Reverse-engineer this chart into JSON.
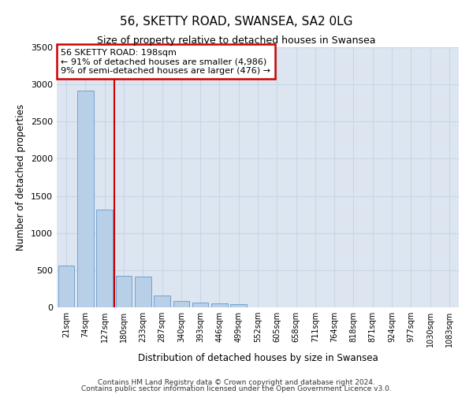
{
  "title": "56, SKETTY ROAD, SWANSEA, SA2 0LG",
  "subtitle": "Size of property relative to detached houses in Swansea",
  "xlabel": "Distribution of detached houses by size in Swansea",
  "ylabel": "Number of detached properties",
  "categories": [
    "21sqm",
    "74sqm",
    "127sqm",
    "180sqm",
    "233sqm",
    "287sqm",
    "340sqm",
    "393sqm",
    "446sqm",
    "499sqm",
    "552sqm",
    "605sqm",
    "658sqm",
    "711sqm",
    "764sqm",
    "818sqm",
    "871sqm",
    "924sqm",
    "977sqm",
    "1030sqm",
    "1083sqm"
  ],
  "values": [
    560,
    2920,
    1320,
    420,
    410,
    155,
    80,
    60,
    55,
    45,
    0,
    0,
    0,
    0,
    0,
    0,
    0,
    0,
    0,
    0,
    0
  ],
  "bar_color": "#b8cfe8",
  "bar_edge_color": "#6699cc",
  "grid_color": "#c8d4e8",
  "background_color": "#dde6f0",
  "annotation_box_color": "#cc0000",
  "property_line_color": "#cc0000",
  "annotation_title": "56 SKETTY ROAD: 198sqm",
  "annotation_line1": "← 91% of detached houses are smaller (4,986)",
  "annotation_line2": "9% of semi-detached houses are larger (476) →",
  "ylim": [
    0,
    3500
  ],
  "yticks": [
    0,
    500,
    1000,
    1500,
    2000,
    2500,
    3000,
    3500
  ],
  "property_line_x": 2.5,
  "footnote1": "Contains HM Land Registry data © Crown copyright and database right 2024.",
  "footnote2": "Contains public sector information licensed under the Open Government Licence v3.0."
}
